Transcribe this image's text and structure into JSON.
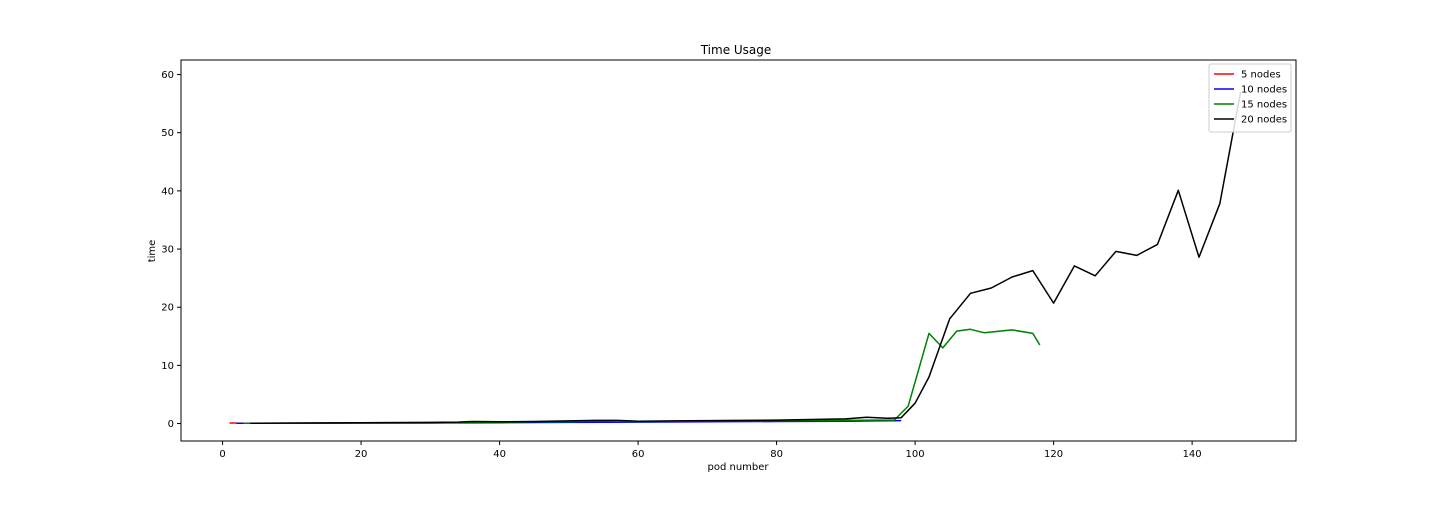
{
  "chart_data": {
    "type": "line",
    "title": "Time Usage",
    "xlabel": "pod number",
    "ylabel": "time",
    "xlim": [
      -6,
      155
    ],
    "ylim": [
      -3,
      62.5
    ],
    "xticks": [
      0,
      20,
      40,
      60,
      80,
      100,
      120,
      140
    ],
    "yticks": [
      0,
      10,
      20,
      30,
      40,
      50,
      60
    ],
    "grid": false,
    "legend_position": "top-right",
    "series": [
      {
        "name": "5 nodes",
        "color": "#ff0000",
        "x": [
          1,
          2
        ],
        "y": [
          0.1,
          0.1
        ]
      },
      {
        "name": "10 nodes",
        "color": "#0000ff",
        "x": [
          2,
          10,
          20,
          30,
          40,
          50,
          60,
          70,
          80,
          90,
          94,
          98
        ],
        "y": [
          0.05,
          0.05,
          0.1,
          0.1,
          0.15,
          0.2,
          0.25,
          0.3,
          0.35,
          0.4,
          0.45,
          0.5
        ]
      },
      {
        "name": "15 nodes",
        "color": "#008000",
        "x": [
          3,
          10,
          20,
          30,
          36,
          40,
          45,
          50,
          54,
          57,
          60,
          66,
          72,
          78,
          84,
          90,
          94,
          97,
          99,
          102,
          104,
          106,
          108,
          110,
          114,
          117,
          118
        ],
        "y": [
          0.05,
          0.05,
          0.1,
          0.1,
          0.2,
          0.2,
          0.3,
          0.3,
          0.45,
          0.4,
          0.35,
          0.4,
          0.45,
          0.5,
          0.5,
          0.55,
          0.6,
          0.6,
          3.0,
          15.5,
          13.0,
          15.9,
          16.2,
          15.6,
          16.1,
          15.5,
          13.5
        ]
      },
      {
        "name": "20 nodes",
        "color": "#000000",
        "x": [
          4,
          10,
          20,
          30,
          34,
          36,
          40,
          45,
          50,
          54,
          57,
          60,
          65,
          70,
          75,
          80,
          85,
          90,
          93,
          96,
          98,
          100,
          102,
          105,
          108,
          111,
          114,
          117,
          120,
          123,
          126,
          129,
          132,
          135,
          138,
          141,
          144,
          147
        ],
        "y": [
          0.05,
          0.1,
          0.15,
          0.2,
          0.25,
          0.35,
          0.3,
          0.35,
          0.45,
          0.55,
          0.55,
          0.4,
          0.45,
          0.5,
          0.55,
          0.6,
          0.7,
          0.8,
          1.1,
          0.9,
          1.0,
          3.5,
          8.0,
          18.0,
          22.4,
          23.3,
          25.2,
          26.3,
          20.7,
          27.1,
          25.4,
          29.6,
          28.9,
          30.8,
          40.1,
          28.6,
          37.8,
          57.0
        ]
      }
    ]
  }
}
